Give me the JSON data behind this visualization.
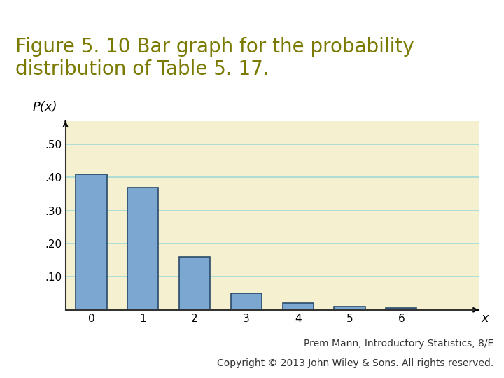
{
  "title": "Figure 5. 10 Bar graph for the probability\ndistribution of Table 5. 17.",
  "title_color": "#7a7a00",
  "bar_values": [
    0.41,
    0.37,
    0.16,
    0.05,
    0.02,
    0.01,
    0.005
  ],
  "x_positions": [
    0,
    1,
    2,
    3,
    4,
    5,
    6
  ],
  "x_labels": [
    "0",
    "1",
    "2",
    "3",
    "4",
    "5",
    "6",
    "x"
  ],
  "bar_color": "#7ba7d0",
  "bar_edgecolor": "#2a4a6a",
  "bar_width": 0.6,
  "ylabel": "P(x)",
  "xlabel": "x",
  "yticks": [
    0.1,
    0.2,
    0.3,
    0.4,
    0.5
  ],
  "ytick_labels": [
    ".10",
    ".20",
    ".30",
    ".40",
    ".50"
  ],
  "ylim": [
    0,
    0.57
  ],
  "xlim": [
    -0.5,
    7.5
  ],
  "background_color": "#f5f0d0",
  "grid_color": "#a0d8d8",
  "page_background": "#ffffff",
  "separator_color": "#7a7a00",
  "footer_text1": "Prem Mann, ",
  "footer_text2": "Introductory Statistics",
  "footer_text3": ", 8/E",
  "footer_text4": "Copyright © 2013 John Wiley & Sons. All rights reserved.",
  "font_size_title": 20,
  "font_size_axis": 12,
  "font_size_tick": 11,
  "font_size_footer": 10
}
